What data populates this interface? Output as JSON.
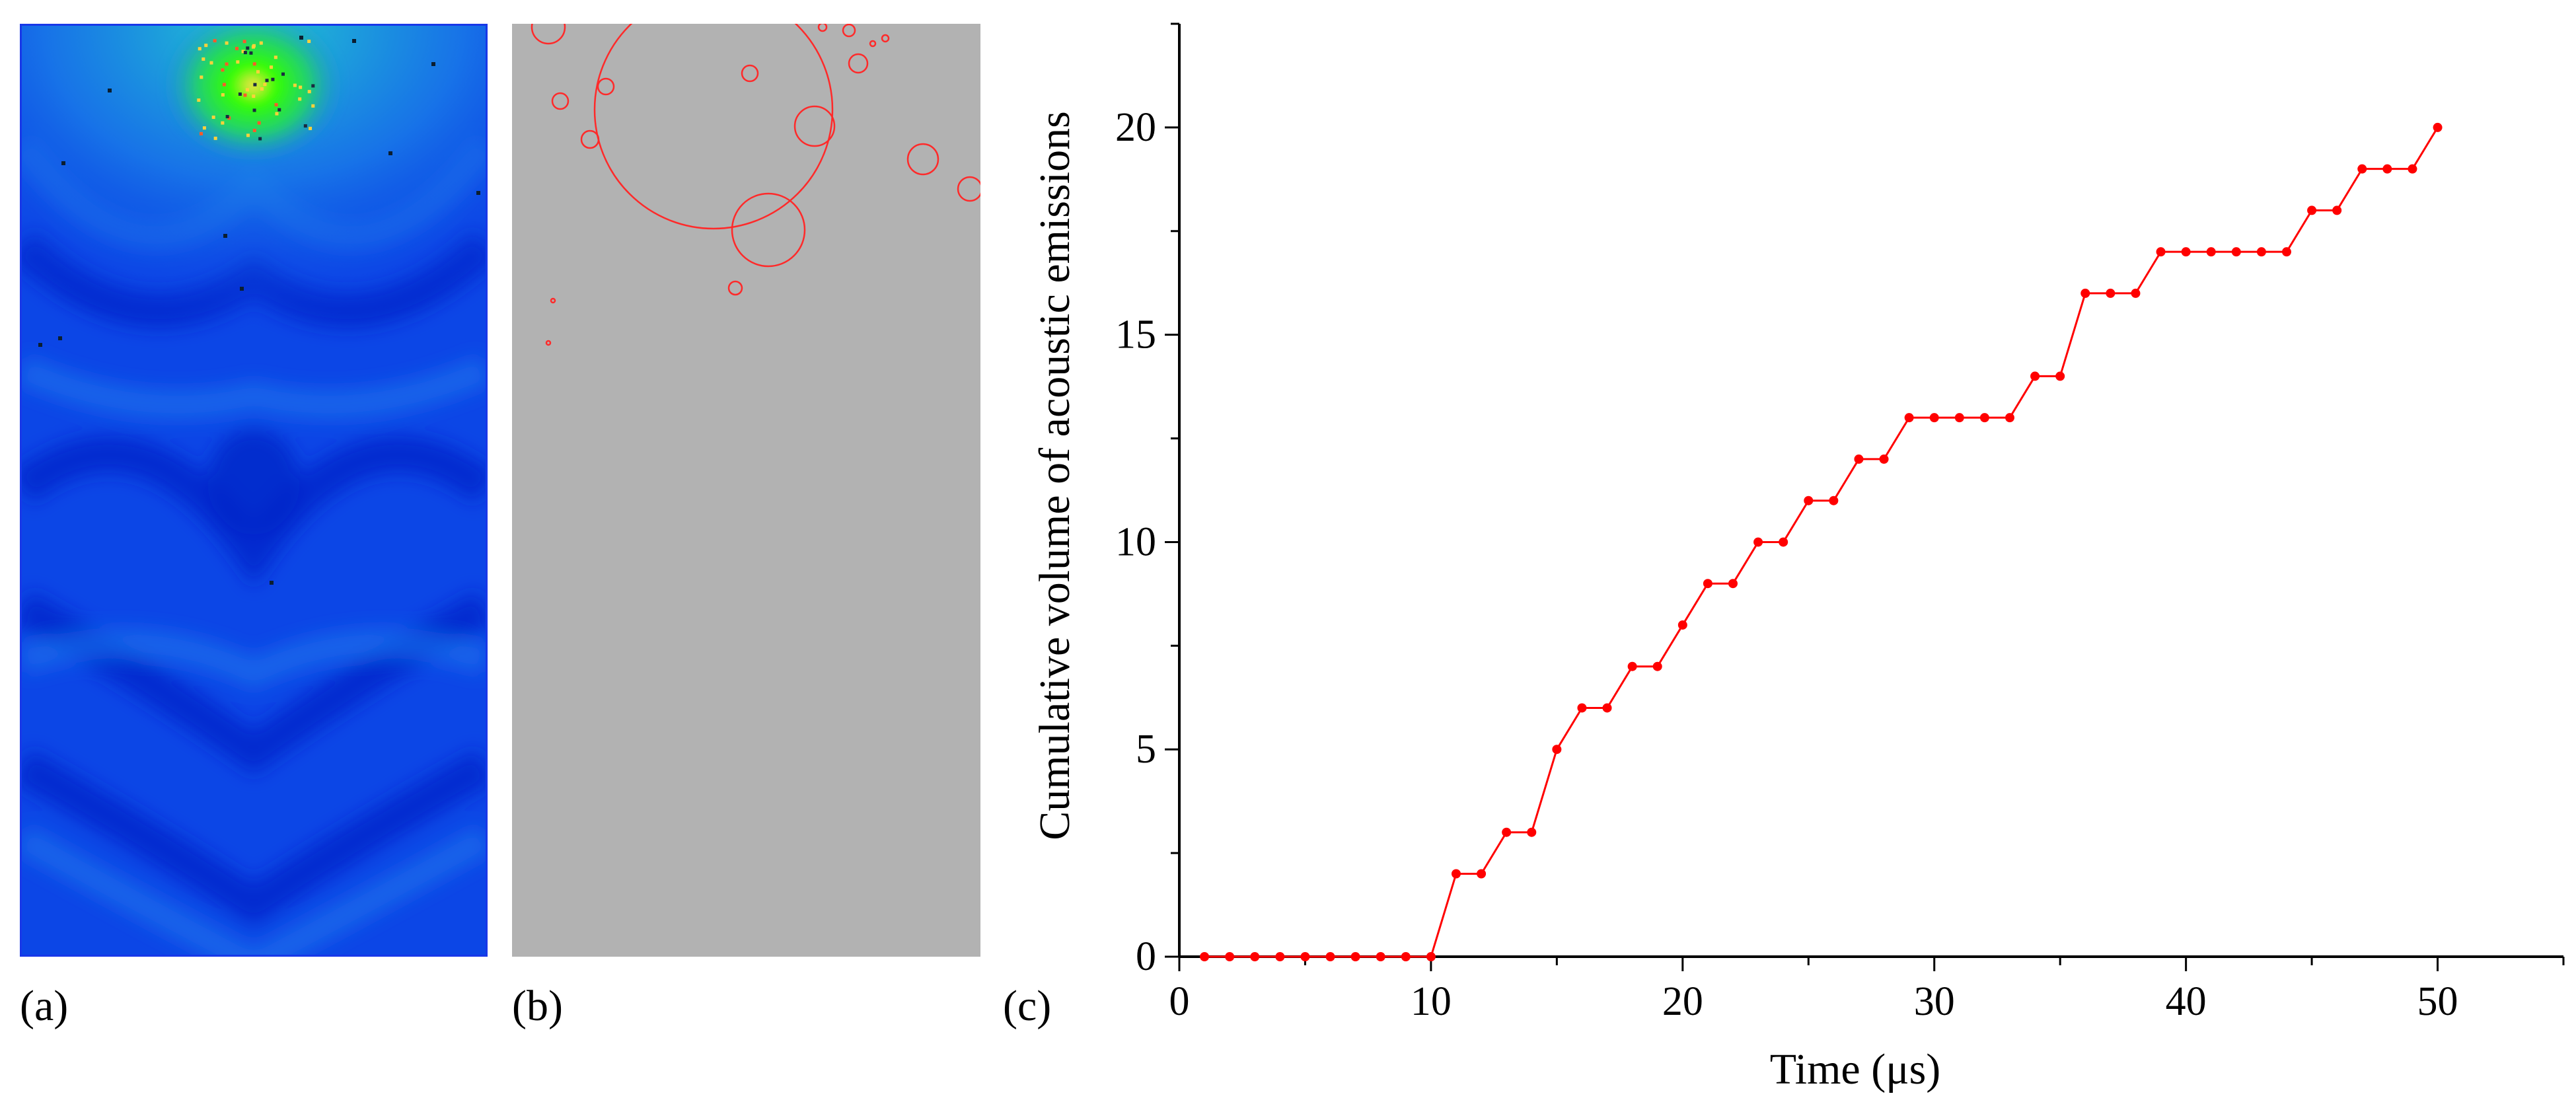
{
  "panels": {
    "a_label": "(a)",
    "b_label": "(b)",
    "c_label": "(c)"
  },
  "colors": {
    "series": "#ff0000",
    "panel_b_background": "#b2b2b2",
    "panel_a_border": "#1838e8",
    "heatmap_low": "#0a3ae6",
    "heatmap_high": "#33ff00"
  },
  "chart_data": [
    {
      "panel": "a",
      "type": "heatmap",
      "description_free": true,
      "colorscale": [
        "#0a3ae6",
        "#0f7ff0",
        "#00c8e0",
        "#33ff00"
      ]
    },
    {
      "panel": "b",
      "type": "scatter",
      "marker": "circle-outline",
      "marker_color": "#ff0000"
    },
    {
      "panel": "c",
      "type": "line",
      "xlabel": "Time (μs)",
      "ylabel": "Cumulative volume of acoustic emissions",
      "xlim": [
        0,
        55
      ],
      "ylim": [
        0,
        22.5
      ],
      "xticks": [
        0,
        10,
        20,
        30,
        40,
        50
      ],
      "yticks": [
        0,
        5,
        10,
        15,
        20
      ],
      "grid": false,
      "series": [
        {
          "color": "#ff0000",
          "x": [
            1,
            2,
            3,
            4,
            5,
            6,
            7,
            8,
            9,
            10,
            11,
            12,
            13,
            14,
            15,
            16,
            17,
            18,
            19,
            20,
            21,
            22,
            23,
            24,
            25,
            26,
            27,
            28,
            29,
            30,
            31,
            32,
            33,
            34,
            35,
            36,
            37,
            38,
            39,
            40,
            41,
            42,
            43,
            44,
            45,
            46,
            47,
            48,
            49,
            50
          ],
          "y": [
            0,
            0,
            0,
            0,
            0,
            0,
            0,
            0,
            0,
            0,
            2,
            2,
            3,
            3,
            5,
            6,
            6,
            7,
            7,
            8,
            9,
            9,
            10,
            10,
            11,
            11,
            12,
            12,
            13,
            13,
            13,
            13,
            13,
            14,
            14,
            16,
            16,
            16,
            17,
            17,
            17,
            17,
            17,
            17,
            18,
            18,
            19,
            19,
            19,
            20
          ]
        }
      ]
    }
  ]
}
